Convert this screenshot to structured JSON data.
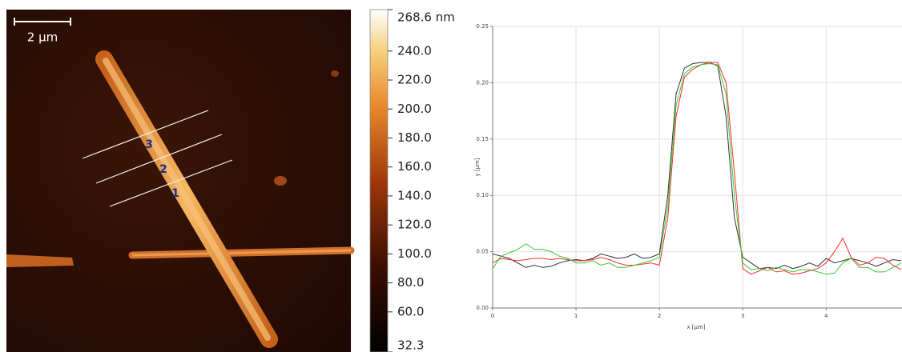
{
  "chart_data": [
    {
      "type": "image",
      "scale_bar": "2 μm",
      "profile_labels": [
        "1",
        "2",
        "3"
      ],
      "colorbar": {
        "lim": [
          32.3,
          268.6
        ],
        "ticks": [
          {
            "value": 268.6,
            "label": "268.6 nm"
          },
          {
            "value": 240,
            "label": "240.0"
          },
          {
            "value": 220,
            "label": "220.0"
          },
          {
            "value": 200,
            "label": "200.0"
          },
          {
            "value": 180,
            "label": "180.0"
          },
          {
            "value": 160,
            "label": "160.0"
          },
          {
            "value": 140,
            "label": "140.0"
          },
          {
            "value": 120,
            "label": "120.0"
          },
          {
            "value": 100,
            "label": "100.0"
          },
          {
            "value": 80,
            "label": "80.0"
          },
          {
            "value": 60,
            "label": "60.0"
          },
          32.3
        ]
      }
    },
    {
      "type": "line",
      "x_label": "x [μm]",
      "y_label": "y [μm]",
      "x": [
        0,
        0.1,
        0.2,
        0.3,
        0.4,
        0.5,
        0.6,
        0.7,
        0.8,
        0.9,
        1.0,
        1.1,
        1.2,
        1.3,
        1.4,
        1.5,
        1.6,
        1.7,
        1.8,
        1.9,
        2.0,
        2.1,
        2.2,
        2.3,
        2.4,
        2.5,
        2.6,
        2.7,
        2.8,
        2.9,
        3.0,
        3.1,
        3.2,
        3.3,
        3.4,
        3.5,
        3.6,
        3.7,
        3.8,
        3.9,
        4.0,
        4.1,
        4.2,
        4.3,
        4.4,
        4.5,
        4.6,
        4.7,
        4.8,
        4.9
      ],
      "series": [
        {
          "color": "#333333",
          "values": [
            0.048,
            0.046,
            0.044,
            0.04,
            0.036,
            0.038,
            0.036,
            0.037,
            0.04,
            0.042,
            0.043,
            0.042,
            0.044,
            0.048,
            0.046,
            0.044,
            0.045,
            0.048,
            0.044,
            0.045,
            0.048,
            0.1,
            0.19,
            0.213,
            0.217,
            0.218,
            0.218,
            0.215,
            0.17,
            0.08,
            0.045,
            0.04,
            0.035,
            0.036,
            0.035,
            0.038,
            0.035,
            0.037,
            0.04,
            0.037,
            0.044,
            0.04,
            0.042,
            0.044,
            0.042,
            0.04,
            0.037,
            0.04,
            0.043,
            0.042
          ]
        },
        {
          "color": "#ff2a2a",
          "values": [
            0.04,
            0.044,
            0.043,
            0.042,
            0.043,
            0.044,
            0.044,
            0.043,
            0.044,
            0.043,
            0.042,
            0.042,
            0.043,
            0.045,
            0.043,
            0.04,
            0.038,
            0.038,
            0.039,
            0.04,
            0.038,
            0.08,
            0.17,
            0.205,
            0.212,
            0.216,
            0.218,
            0.218,
            0.2,
            0.12,
            0.035,
            0.03,
            0.033,
            0.036,
            0.032,
            0.033,
            0.03,
            0.031,
            0.033,
            0.035,
            0.04,
            0.05,
            0.062,
            0.045,
            0.038,
            0.04,
            0.045,
            0.044,
            0.038,
            0.034
          ]
        },
        {
          "color": "#33cc33",
          "values": [
            0.035,
            0.046,
            0.049,
            0.052,
            0.057,
            0.052,
            0.052,
            0.05,
            0.046,
            0.044,
            0.04,
            0.04,
            0.042,
            0.038,
            0.04,
            0.036,
            0.036,
            0.038,
            0.04,
            0.042,
            0.045,
            0.09,
            0.18,
            0.208,
            0.214,
            0.216,
            0.217,
            0.216,
            0.19,
            0.1,
            0.04,
            0.034,
            0.035,
            0.033,
            0.036,
            0.034,
            0.032,
            0.034,
            0.034,
            0.032,
            0.03,
            0.031,
            0.04,
            0.044,
            0.036,
            0.036,
            0.032,
            0.032,
            0.036,
            0.04
          ]
        }
      ],
      "xlim": [
        0,
        4.91
      ],
      "ylim": [
        0,
        0.25
      ],
      "xticks": [
        0,
        1,
        2,
        3,
        4
      ],
      "yticks": [
        {
          "value": 0,
          "label": "0.00"
        },
        0.05,
        {
          "value": 0.1,
          "label": "0.10"
        },
        0.15,
        {
          "value": 0.2,
          "label": "0.20"
        },
        0.25
      ],
      "grid": true
    }
  ]
}
